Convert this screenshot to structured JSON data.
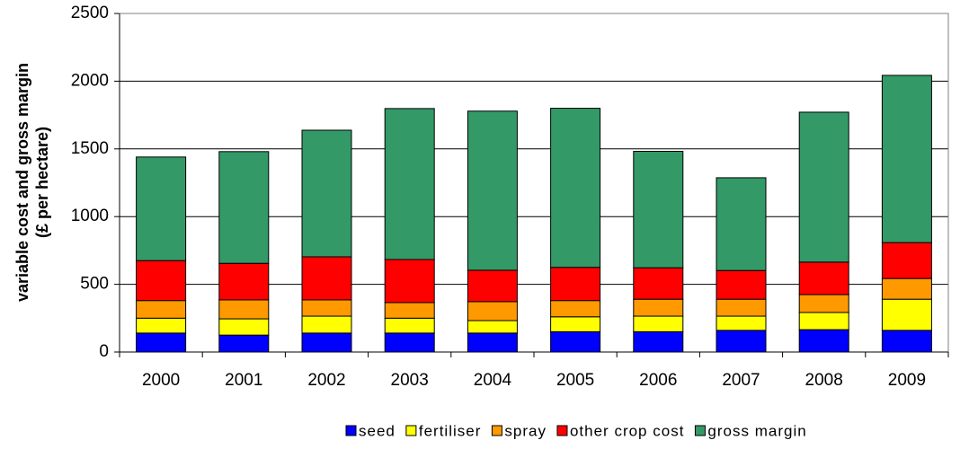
{
  "chart_data": {
    "type": "stacked_bar",
    "y_label": [
      "variable cost and gross margin",
      "(£ per hectare)"
    ],
    "categories": [
      "2000",
      "2001",
      "2002",
      "2003",
      "2004",
      "2005",
      "2006",
      "2007",
      "2008",
      "2009"
    ],
    "series": [
      {
        "name": "seed",
        "color": "#0000ff",
        "values": [
          140,
          125,
          140,
          140,
          140,
          150,
          150,
          160,
          165,
          160
        ]
      },
      {
        "name": "fertiliser",
        "color": "#ffff00",
        "values": [
          110,
          120,
          125,
          110,
          92,
          110,
          115,
          105,
          127,
          230
        ]
      },
      {
        "name": "spray",
        "color": "#ff9900",
        "values": [
          130,
          140,
          120,
          115,
          140,
          120,
          125,
          125,
          132,
          153
        ]
      },
      {
        "name": "other crop cost",
        "color": "#ff0000",
        "values": [
          295,
          270,
          318,
          318,
          232,
          245,
          232,
          212,
          240,
          265
        ]
      },
      {
        "name": "gross margin",
        "color": "#339966",
        "values": [
          765,
          825,
          935,
          1115,
          1175,
          1175,
          860,
          685,
          1107,
          1235
        ]
      }
    ],
    "ylim": [
      0,
      2500
    ],
    "yticks": [
      0,
      500,
      1000,
      1500,
      2000,
      2500
    ],
    "grid": true
  }
}
